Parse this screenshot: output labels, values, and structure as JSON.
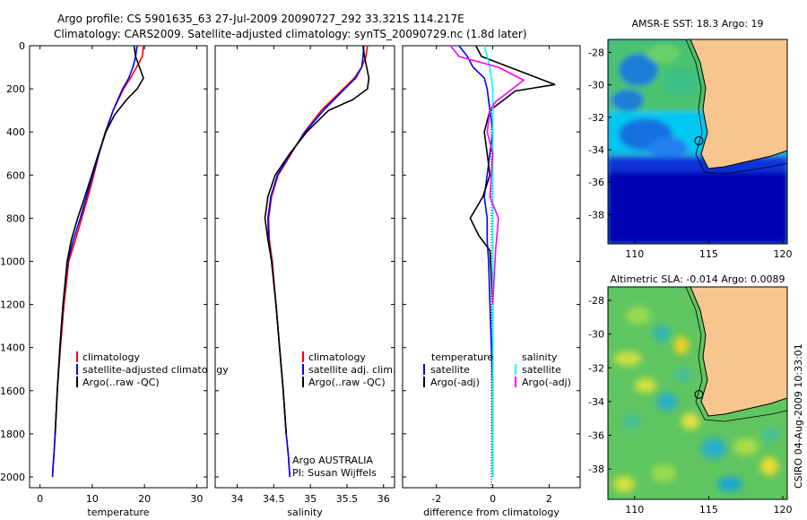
{
  "header": {
    "line1": "Argo profile: CS 5901635_63 27-Jul-2009 20090727_292 33.321S 114.217E",
    "line2": "Climatology: CARS2009. Satellite-adjusted climatology: synTS_20090729.nc (1.8d later)"
  },
  "chart_data": [
    {
      "type": "line",
      "id": "temperature",
      "xlabel": "temperature",
      "xlim": [
        -2,
        32
      ],
      "ylim": [
        2050,
        0
      ],
      "xticks": [
        "0",
        "10",
        "20",
        "30"
      ],
      "yticks": [
        "0",
        "200",
        "400",
        "600",
        "800",
        "1000",
        "1200",
        "1400",
        "1600",
        "1800",
        "2000"
      ],
      "legend": [
        "climatology",
        "satellite-adjusted climatology",
        "Argo(..raw -QC)"
      ],
      "series": [
        {
          "name": "climatology",
          "color": "#ff0000",
          "x": [
            19.8,
            19.6,
            18.5,
            17.3,
            16.0,
            14.0,
            12.5,
            11.3,
            10.3,
            9.2,
            8.0,
            6.8,
            5.5,
            4.6,
            3.9,
            3.3,
            2.9,
            2.65,
            2.5,
            2.4
          ],
          "y": [
            0,
            50,
            100,
            150,
            200,
            300,
            400,
            500,
            600,
            700,
            800,
            900,
            1000,
            1200,
            1400,
            1600,
            1800,
            1900,
            1950,
            2000
          ]
        },
        {
          "name": "satellite-adjusted climatology",
          "color": "#0000ff",
          "x": [
            18.6,
            18.3,
            17.8,
            17.0,
            15.8,
            14.0,
            12.6,
            11.3,
            10.1,
            8.9,
            7.7,
            6.4,
            5.3,
            4.4,
            3.8,
            3.3,
            2.9,
            2.65,
            2.5,
            2.4
          ],
          "y": [
            0,
            50,
            100,
            150,
            200,
            300,
            400,
            500,
            600,
            700,
            800,
            900,
            1000,
            1200,
            1400,
            1600,
            1800,
            1900,
            1950,
            2000
          ]
        },
        {
          "name": "Argo(..raw -QC)",
          "color": "#000000",
          "x": [
            18.0,
            18.3,
            19.8,
            18.6,
            16.6,
            14.3,
            12.6,
            11.2,
            9.9,
            8.6,
            7.2,
            6.0,
            5.2,
            4.4,
            3.8,
            3.3,
            2.9
          ],
          "y": [
            0,
            50,
            150,
            200,
            250,
            320,
            400,
            500,
            600,
            700,
            800,
            900,
            1000,
            1200,
            1400,
            1600,
            1800
          ]
        }
      ]
    },
    {
      "type": "line",
      "id": "salinity",
      "xlabel": "salinity",
      "xlim": [
        33.7,
        36.15
      ],
      "ylim": [
        2050,
        0
      ],
      "xticks": [
        "34",
        "34.5",
        "35",
        "35.5",
        "36"
      ],
      "legend": [
        "climatology",
        "satellite adj. clim.",
        "Argo(..raw -QC)"
      ],
      "annotation": [
        "Argo AUSTRALIA",
        "PI: Susan Wijffels"
      ],
      "series": [
        {
          "name": "climatology",
          "color": "#ff0000",
          "x": [
            35.78,
            35.76,
            35.7,
            35.6,
            35.45,
            35.15,
            34.92,
            34.74,
            34.56,
            34.47,
            34.43,
            34.44,
            34.48,
            34.53,
            34.58,
            34.63,
            34.67,
            34.7,
            34.71,
            34.72
          ],
          "y": [
            0,
            50,
            100,
            150,
            200,
            300,
            400,
            500,
            600,
            700,
            800,
            900,
            1000,
            1200,
            1400,
            1600,
            1800,
            1900,
            1950,
            2000
          ]
        },
        {
          "name": "satellite adj. clim.",
          "color": "#0000ff",
          "x": [
            35.73,
            35.72,
            35.7,
            35.62,
            35.47,
            35.18,
            34.93,
            34.73,
            34.55,
            34.46,
            34.42,
            34.43,
            34.47,
            34.53,
            34.58,
            34.63,
            34.67,
            34.7,
            34.71,
            34.72
          ],
          "y": [
            0,
            50,
            100,
            150,
            200,
            300,
            400,
            500,
            600,
            700,
            800,
            900,
            1000,
            1200,
            1400,
            1600,
            1800,
            1900,
            1950,
            2000
          ]
        },
        {
          "name": "Argo(..raw -QC)",
          "color": "#000000",
          "x": [
            35.72,
            35.74,
            35.8,
            35.78,
            35.58,
            35.25,
            34.95,
            34.72,
            34.52,
            34.42,
            34.38,
            34.42,
            34.47,
            34.53,
            34.58,
            34.63,
            34.67
          ],
          "y": [
            0,
            50,
            150,
            200,
            250,
            300,
            400,
            500,
            600,
            700,
            800,
            900,
            1000,
            1200,
            1400,
            1600,
            1800
          ]
        }
      ]
    },
    {
      "type": "line",
      "id": "difference",
      "xlabel": "difference from climatology",
      "xlim": [
        -3.2,
        3.1
      ],
      "ylim": [
        2050,
        0
      ],
      "xticks": [
        "-2",
        "0",
        "2"
      ],
      "legend_headers": [
        "temperature",
        "salinity"
      ],
      "legend": [
        "satellite",
        "Argo(-adj)",
        "satellite",
        "Argo(-adj)"
      ],
      "series": [
        {
          "name": "temperature satellite",
          "color": "#0000ff",
          "x": [
            -1.2,
            -0.9,
            -0.7,
            -0.3,
            -0.2,
            -0.1,
            0.0,
            -0.1,
            -0.2,
            -0.3,
            -0.2,
            -0.2,
            -0.15,
            -0.1,
            0.0,
            0.0
          ],
          "y": [
            0,
            50,
            100,
            150,
            200,
            300,
            400,
            500,
            600,
            700,
            800,
            900,
            1000,
            1200,
            1600,
            2000
          ]
        },
        {
          "name": "temperature Argo(-adj)",
          "color": "#000000",
          "x": [
            -0.6,
            -0.4,
            0.6,
            2.2,
            0.8,
            0.3,
            -0.1,
            -0.3,
            -0.2,
            -0.1,
            -0.35,
            -0.8,
            -0.5,
            -0.1,
            0.0,
            0.0
          ],
          "y": [
            0,
            50,
            100,
            180,
            210,
            260,
            300,
            400,
            500,
            600,
            700,
            800,
            880,
            950,
            1200,
            1800
          ]
        },
        {
          "name": "salinity satellite",
          "color": "#00ffff",
          "x": [
            -0.3,
            -0.2,
            -0.1,
            0.0,
            0.0,
            0.0,
            0.0
          ],
          "y": [
            0,
            50,
            100,
            200,
            400,
            1000,
            2000
          ]
        },
        {
          "name": "salinity Argo(-adj)",
          "color": "#ff00ff",
          "x": [
            -1.5,
            -1.2,
            0.2,
            1.1,
            0.6,
            0.1,
            -0.1,
            -0.2,
            0.0,
            -0.1,
            0.2,
            0.1,
            0.0
          ],
          "y": [
            0,
            50,
            100,
            160,
            210,
            260,
            300,
            400,
            500,
            700,
            800,
            950,
            1200
          ]
        }
      ]
    },
    {
      "type": "heatmap",
      "id": "sst-map",
      "title": "AMSR-E SST: 18.3 Argo: 19",
      "xticks": [
        "110",
        "115",
        "120"
      ],
      "yticks": [
        "-28",
        "-30",
        "-32",
        "-34",
        "-36",
        "-38"
      ],
      "xlim": [
        108.2,
        120.3
      ],
      "ylim": [
        -39.8,
        -27.2
      ],
      "float_position": {
        "lon": 114.217,
        "lat": -33.321
      }
    },
    {
      "type": "heatmap",
      "id": "sla-map",
      "title": "Altimetric SLA: -0.014 Argo: 0.0089",
      "xticks": [
        "110",
        "115",
        "120"
      ],
      "yticks": [
        "-28",
        "-30",
        "-32",
        "-34",
        "-36",
        "-38"
      ],
      "xlim": [
        108.2,
        120.3
      ],
      "ylim": [
        -39.8,
        -27.2
      ],
      "float_position": {
        "lon": 114.217,
        "lat": -33.321
      }
    }
  ],
  "footer": {
    "credit": "CSIRO 04-Aug-2009 10:33:01"
  },
  "colors": {
    "land": "#f7c58d",
    "ocean_blue": "#0000b4"
  }
}
